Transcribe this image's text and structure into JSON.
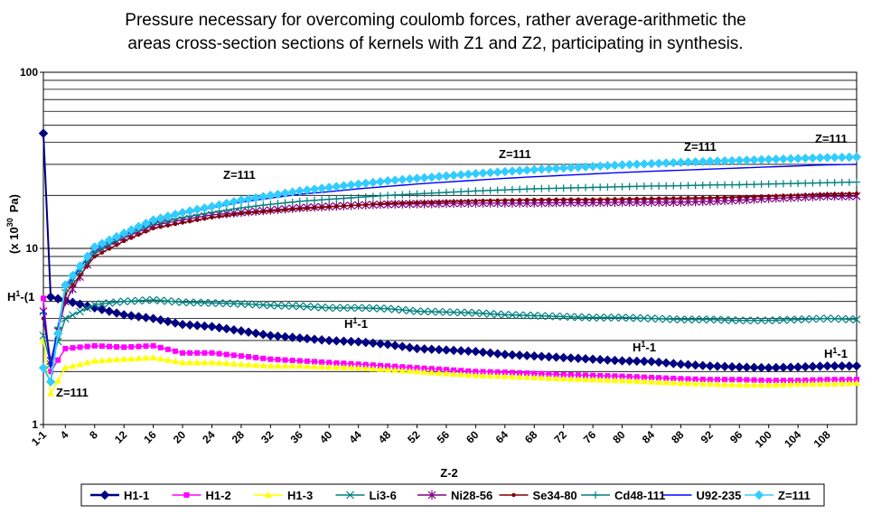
{
  "chart_data": {
    "type": "line",
    "title_line1": "Pressure necessary for overcoming coulomb forces, rather average-arithmetic the",
    "title_line2": "areas cross-section sections of kernels with Z1 and Z2, participating in synthesis.",
    "xlabel": "Z-2",
    "ylabel_prefix": "(x 10",
    "ylabel_exp": "30",
    "ylabel_suffix": "Pa)",
    "yscale": "log",
    "ylim": [
      1,
      100
    ],
    "y_ticks": [
      "1",
      "10",
      "100"
    ],
    "x_ticks": [
      "1-1",
      "4",
      "8",
      "12",
      "16",
      "20",
      "24",
      "28",
      "32",
      "36",
      "40",
      "44",
      "48",
      "52",
      "56",
      "60",
      "64",
      "68",
      "72",
      "76",
      "80",
      "84",
      "88",
      "92",
      "96",
      "100",
      "104",
      "108"
    ],
    "grid": "horizontal-major-and-minor",
    "legend_position": "bottom",
    "series": [
      {
        "name": "H1-1",
        "color": "#000080",
        "marker": "diamond",
        "points": [
          [
            1,
            45
          ],
          [
            2,
            5.3
          ],
          [
            8,
            4.6
          ],
          [
            12,
            4.2
          ],
          [
            16,
            4.0
          ],
          [
            20,
            3.7
          ],
          [
            24,
            3.6
          ],
          [
            28,
            3.4
          ],
          [
            32,
            3.2
          ],
          [
            36,
            3.1
          ],
          [
            40,
            3.0
          ],
          [
            44,
            2.95
          ],
          [
            48,
            2.85
          ],
          [
            52,
            2.7
          ],
          [
            56,
            2.65
          ],
          [
            60,
            2.6
          ],
          [
            64,
            2.5
          ],
          [
            68,
            2.45
          ],
          [
            72,
            2.4
          ],
          [
            76,
            2.35
          ],
          [
            80,
            2.3
          ],
          [
            84,
            2.28
          ],
          [
            88,
            2.2
          ],
          [
            92,
            2.15
          ],
          [
            96,
            2.12
          ],
          [
            100,
            2.1
          ],
          [
            104,
            2.12
          ],
          [
            108,
            2.15
          ],
          [
            112,
            2.15
          ]
        ]
      },
      {
        "name": "H1-2",
        "color": "#ff00ff",
        "marker": "square",
        "points": [
          [
            1,
            5.2
          ],
          [
            2,
            2.0
          ],
          [
            4,
            2.7
          ],
          [
            8,
            2.8
          ],
          [
            12,
            2.75
          ],
          [
            16,
            2.8
          ],
          [
            20,
            2.55
          ],
          [
            24,
            2.55
          ],
          [
            28,
            2.45
          ],
          [
            32,
            2.35
          ],
          [
            36,
            2.3
          ],
          [
            40,
            2.25
          ],
          [
            44,
            2.2
          ],
          [
            48,
            2.15
          ],
          [
            52,
            2.1
          ],
          [
            56,
            2.05
          ],
          [
            60,
            2.0
          ],
          [
            64,
            1.98
          ],
          [
            68,
            1.95
          ],
          [
            72,
            1.92
          ],
          [
            76,
            1.9
          ],
          [
            80,
            1.88
          ],
          [
            84,
            1.85
          ],
          [
            88,
            1.82
          ],
          [
            92,
            1.8
          ],
          [
            96,
            1.8
          ],
          [
            100,
            1.78
          ],
          [
            104,
            1.78
          ],
          [
            108,
            1.8
          ],
          [
            112,
            1.8
          ]
        ]
      },
      {
        "name": "H1-3",
        "color": "#ffff00",
        "marker": "triangle",
        "points": [
          [
            1,
            3.0
          ],
          [
            2,
            1.5
          ],
          [
            4,
            2.1
          ],
          [
            8,
            2.3
          ],
          [
            12,
            2.35
          ],
          [
            16,
            2.4
          ],
          [
            20,
            2.25
          ],
          [
            24,
            2.25
          ],
          [
            28,
            2.2
          ],
          [
            32,
            2.15
          ],
          [
            36,
            2.15
          ],
          [
            40,
            2.12
          ],
          [
            44,
            2.1
          ],
          [
            48,
            2.05
          ],
          [
            52,
            2.0
          ],
          [
            56,
            1.95
          ],
          [
            60,
            1.9
          ],
          [
            64,
            1.88
          ],
          [
            68,
            1.85
          ],
          [
            72,
            1.82
          ],
          [
            76,
            1.8
          ],
          [
            80,
            1.78
          ],
          [
            84,
            1.75
          ],
          [
            88,
            1.72
          ],
          [
            92,
            1.7
          ],
          [
            96,
            1.68
          ],
          [
            100,
            1.68
          ],
          [
            104,
            1.7
          ],
          [
            108,
            1.7
          ],
          [
            112,
            1.72
          ]
        ]
      },
      {
        "name": "Li3-6",
        "color": "#008080",
        "marker": "x",
        "points": [
          [
            1,
            3.2
          ],
          [
            2,
            2.2
          ],
          [
            4,
            4.0
          ],
          [
            8,
            4.8
          ],
          [
            12,
            5.0
          ],
          [
            16,
            5.1
          ],
          [
            20,
            4.95
          ],
          [
            24,
            4.9
          ],
          [
            28,
            4.85
          ],
          [
            32,
            4.75
          ],
          [
            36,
            4.7
          ],
          [
            40,
            4.6
          ],
          [
            44,
            4.6
          ],
          [
            48,
            4.55
          ],
          [
            52,
            4.4
          ],
          [
            56,
            4.35
          ],
          [
            60,
            4.3
          ],
          [
            64,
            4.2
          ],
          [
            68,
            4.15
          ],
          [
            72,
            4.1
          ],
          [
            76,
            4.05
          ],
          [
            80,
            4.05
          ],
          [
            84,
            4.0
          ],
          [
            88,
            3.95
          ],
          [
            92,
            3.95
          ],
          [
            96,
            3.9
          ],
          [
            100,
            3.9
          ],
          [
            104,
            3.95
          ],
          [
            108,
            4.0
          ],
          [
            112,
            3.95
          ]
        ]
      },
      {
        "name": "Ni28-56",
        "color": "#800080",
        "marker": "asterisk",
        "points": [
          [
            1,
            4.4
          ],
          [
            2,
            2.3
          ],
          [
            4,
            5.0
          ],
          [
            8,
            9.5
          ],
          [
            12,
            11.5
          ],
          [
            16,
            13.5
          ],
          [
            20,
            14.5
          ],
          [
            24,
            15.5
          ],
          [
            28,
            16.0
          ],
          [
            32,
            16.5
          ],
          [
            36,
            17.0
          ],
          [
            40,
            17.3
          ],
          [
            44,
            17.6
          ],
          [
            48,
            17.8
          ],
          [
            52,
            17.9
          ],
          [
            56,
            18.0
          ],
          [
            60,
            18.1
          ],
          [
            64,
            18.1
          ],
          [
            68,
            18.1
          ],
          [
            72,
            18.2
          ],
          [
            76,
            18.2
          ],
          [
            80,
            18.3
          ],
          [
            84,
            18.3
          ],
          [
            88,
            18.3
          ],
          [
            92,
            18.5
          ],
          [
            96,
            18.8
          ],
          [
            100,
            19.2
          ],
          [
            104,
            19.5
          ],
          [
            108,
            19.8
          ],
          [
            112,
            19.8
          ]
        ]
      },
      {
        "name": "Se34-80",
        "color": "#800000",
        "marker": "dot",
        "points": [
          [
            1,
            4.0
          ],
          [
            2,
            2.2
          ],
          [
            4,
            5.5
          ],
          [
            8,
            9.0
          ],
          [
            12,
            11.0
          ],
          [
            16,
            13.0
          ],
          [
            20,
            14.0
          ],
          [
            24,
            15.0
          ],
          [
            28,
            15.8
          ],
          [
            32,
            16.3
          ],
          [
            36,
            16.8
          ],
          [
            40,
            17.2
          ],
          [
            44,
            17.6
          ],
          [
            48,
            18.0
          ],
          [
            52,
            18.2
          ],
          [
            56,
            18.4
          ],
          [
            60,
            18.6
          ],
          [
            64,
            18.8
          ],
          [
            68,
            18.9
          ],
          [
            72,
            19.0
          ],
          [
            76,
            19.0
          ],
          [
            80,
            19.1
          ],
          [
            84,
            19.2
          ],
          [
            88,
            19.3
          ],
          [
            92,
            19.4
          ],
          [
            96,
            19.6
          ],
          [
            100,
            19.8
          ],
          [
            104,
            20.0
          ],
          [
            108,
            20.3
          ],
          [
            112,
            20.5
          ]
        ]
      },
      {
        "name": "Cd48-111",
        "color": "#008080",
        "marker": "plus",
        "points": [
          [
            1,
            4.3
          ],
          [
            2,
            2.2
          ],
          [
            4,
            5.8
          ],
          [
            8,
            9.5
          ],
          [
            12,
            11.8
          ],
          [
            16,
            13.8
          ],
          [
            20,
            15.0
          ],
          [
            24,
            16.0
          ],
          [
            28,
            17.0
          ],
          [
            32,
            17.8
          ],
          [
            36,
            18.5
          ],
          [
            40,
            19.0
          ],
          [
            44,
            19.5
          ],
          [
            48,
            20.0
          ],
          [
            52,
            20.4
          ],
          [
            56,
            20.8
          ],
          [
            60,
            21.2
          ],
          [
            64,
            21.5
          ],
          [
            68,
            21.8
          ],
          [
            72,
            22.0
          ],
          [
            76,
            22.2
          ],
          [
            80,
            22.4
          ],
          [
            84,
            22.6
          ],
          [
            88,
            22.7
          ],
          [
            92,
            22.9
          ],
          [
            96,
            23.0
          ],
          [
            100,
            23.2
          ],
          [
            104,
            23.4
          ],
          [
            108,
            23.6
          ],
          [
            112,
            23.8
          ]
        ]
      },
      {
        "name": "U92-235",
        "color": "#0000ff",
        "marker": "none",
        "points": [
          [
            1,
            4.5
          ],
          [
            2,
            2.1
          ],
          [
            4,
            6.0
          ],
          [
            8,
            10.0
          ],
          [
            12,
            12.0
          ],
          [
            16,
            14.2
          ],
          [
            20,
            15.8
          ],
          [
            24,
            17.0
          ],
          [
            28,
            18.3
          ],
          [
            32,
            19.3
          ],
          [
            36,
            20.3
          ],
          [
            40,
            21.0
          ],
          [
            44,
            21.8
          ],
          [
            48,
            22.5
          ],
          [
            52,
            23.2
          ],
          [
            56,
            23.8
          ],
          [
            60,
            24.4
          ],
          [
            64,
            25.0
          ],
          [
            68,
            25.5
          ],
          [
            72,
            26.0
          ],
          [
            76,
            26.5
          ],
          [
            80,
            27.0
          ],
          [
            84,
            27.4
          ],
          [
            88,
            27.8
          ],
          [
            92,
            28.2
          ],
          [
            96,
            28.6
          ],
          [
            100,
            29.0
          ],
          [
            104,
            29.4
          ],
          [
            108,
            29.8
          ],
          [
            112,
            30.0
          ]
        ]
      },
      {
        "name": "Z=111",
        "color": "#33ccff",
        "marker": "diamond",
        "points": [
          [
            1,
            2.1
          ],
          [
            2,
            1.75
          ],
          [
            4,
            6.2
          ],
          [
            8,
            10.2
          ],
          [
            12,
            12.2
          ],
          [
            16,
            14.5
          ],
          [
            20,
            16.0
          ],
          [
            24,
            17.3
          ],
          [
            28,
            18.8
          ],
          [
            32,
            20.0
          ],
          [
            36,
            21.2
          ],
          [
            40,
            22.2
          ],
          [
            44,
            23.2
          ],
          [
            48,
            24.2
          ],
          [
            52,
            25.0
          ],
          [
            56,
            25.8
          ],
          [
            60,
            26.6
          ],
          [
            64,
            27.3
          ],
          [
            68,
            28.0
          ],
          [
            72,
            28.6
          ],
          [
            76,
            29.2
          ],
          [
            80,
            29.8
          ],
          [
            84,
            30.3
          ],
          [
            88,
            30.8
          ],
          [
            92,
            31.2
          ],
          [
            96,
            31.6
          ],
          [
            100,
            32.0
          ],
          [
            104,
            32.4
          ],
          [
            108,
            32.8
          ],
          [
            112,
            33.0
          ]
        ]
      }
    ],
    "annotations": [
      {
        "text": "Z=111",
        "x": 46,
        "y": 28.0
      },
      {
        "text": "Z=111",
        "x": 48,
        "y": 25.0
      },
      {
        "text": "Z=111",
        "x": 56,
        "y": 26.5
      },
      {
        "text": "Z=111",
        "x": 20,
        "y": 20.0
      },
      {
        "text": "Z=111",
        "x": 2,
        "y": 1.6
      },
      {
        "text": "H1-1",
        "x": 1,
        "y": 5.0
      },
      {
        "text": "H1-1",
        "x": 1,
        "y": 4.0
      },
      {
        "text": "H1-1",
        "x": 1,
        "y": 3.0
      }
    ]
  },
  "annotation_texts": {
    "z111_a": "Z=111",
    "z111_b": "Z=111",
    "z111_c": "Z=111",
    "z111_d": "Z=111",
    "z111_e": "Z=111",
    "h_left": "H",
    "h_left_sup": "1",
    "h_left_tail": "-(1",
    "h_mid": "H",
    "h_mid_sup": "1",
    "h_mid_tail": "-1",
    "h_right1": "H",
    "h_right1_sup": "1",
    "h_right1_tail": "-1",
    "h_right2": "H",
    "h_right2_sup": "1",
    "h_right2_tail": "-1"
  }
}
